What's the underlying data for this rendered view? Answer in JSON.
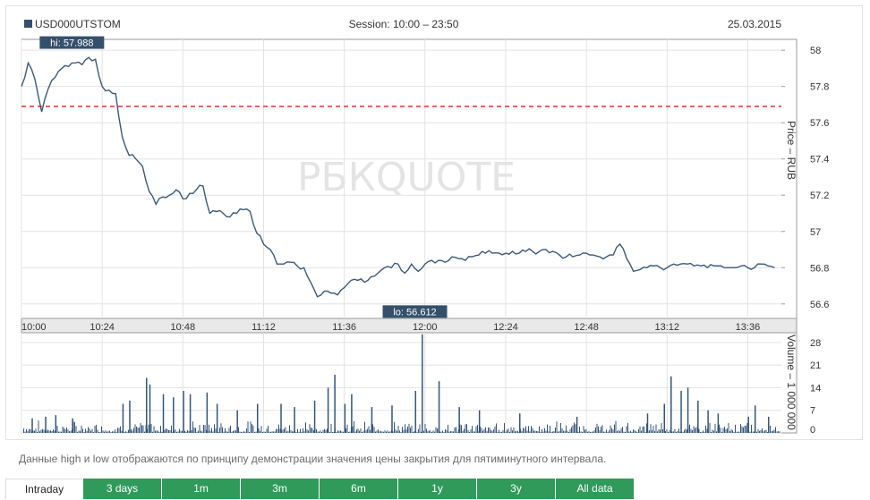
{
  "header": {
    "ticker": "USD000UTSTOM",
    "session": "Session: 10:00 – 23:50",
    "date": "25.03.2015"
  },
  "watermark": "РБКQUOTE",
  "note": "Данные high и low отображаются по принципу демонстрации значения цены закрытия для пятиминутного интервала.",
  "tabs": [
    "Intraday",
    "3 days",
    "1m",
    "3m",
    "6m",
    "1y",
    "3y",
    "All data"
  ],
  "active_tab": "Intraday",
  "colors": {
    "line": "#3a5a7a",
    "volume": "#33557a",
    "reference": "#e03030",
    "tab_bg": "#2f9a5a",
    "label_bg": "#34506b"
  },
  "chart_data": [
    {
      "type": "line",
      "ylabel": "Price – RUB",
      "x_ticks": [
        "10:00",
        "10:24",
        "10:48",
        "11:12",
        "11:36",
        "12:00",
        "12:24",
        "12:48",
        "13:12",
        "13:36"
      ],
      "y_ticks": [
        58,
        57.8,
        57.6,
        57.4,
        57.2,
        57,
        56.8,
        56.6
      ],
      "ylim": [
        56.52,
        58.06
      ],
      "hi_label": "hi: 57.988",
      "lo_label": "lo: 56.612",
      "hi": 57.988,
      "lo": 56.612,
      "reference_line": 57.69,
      "series": [
        {
          "x": [
            "10:00",
            "10:02",
            "10:04",
            "10:06",
            "10:08",
            "10:10",
            "10:12",
            "10:14",
            "10:16",
            "10:18",
            "10:20",
            "10:22",
            "10:24",
            "10:26",
            "10:28",
            "10:30",
            "10:32",
            "10:34",
            "10:36",
            "10:38",
            "10:40",
            "10:42",
            "10:44",
            "10:46",
            "10:48",
            "10:50",
            "10:52",
            "10:54",
            "10:56",
            "10:58",
            "11:00",
            "11:02",
            "11:04",
            "11:06",
            "11:08",
            "11:10",
            "11:12",
            "11:14",
            "11:16",
            "11:18",
            "11:20",
            "11:22",
            "11:24",
            "11:26",
            "11:28",
            "11:30",
            "11:32",
            "11:34",
            "11:36",
            "11:38",
            "11:40",
            "11:42",
            "11:44",
            "11:46",
            "11:48",
            "11:50",
            "11:52",
            "11:54",
            "11:56",
            "11:58",
            "12:00",
            "12:02",
            "12:04",
            "12:06",
            "12:08",
            "12:10",
            "12:12",
            "12:14",
            "12:16",
            "12:18",
            "12:20",
            "12:22",
            "12:24",
            "12:26",
            "12:28",
            "12:30",
            "12:32",
            "12:34",
            "12:36",
            "12:38",
            "12:40",
            "12:42",
            "12:44",
            "12:46",
            "12:48",
            "12:50",
            "12:52",
            "12:54",
            "12:56",
            "12:58",
            "13:00",
            "13:02",
            "13:04",
            "13:06",
            "13:08",
            "13:10",
            "13:12",
            "13:14",
            "13:16",
            "13:18",
            "13:20",
            "13:22",
            "13:24",
            "13:26",
            "13:28",
            "13:30",
            "13:32",
            "13:34",
            "13:36",
            "13:38",
            "13:40",
            "13:42",
            "13:44"
          ],
          "values": [
            57.8,
            57.93,
            57.84,
            57.66,
            57.79,
            57.85,
            57.9,
            57.91,
            57.93,
            57.92,
            57.96,
            57.95,
            57.8,
            57.78,
            57.76,
            57.52,
            57.42,
            57.4,
            57.36,
            57.22,
            57.15,
            57.19,
            57.2,
            57.23,
            57.18,
            57.21,
            57.23,
            57.25,
            57.1,
            57.11,
            57.1,
            57.08,
            57.1,
            57.12,
            57.11,
            56.99,
            56.93,
            56.9,
            56.82,
            56.82,
            56.83,
            56.81,
            56.8,
            56.72,
            56.64,
            56.67,
            56.66,
            56.65,
            56.69,
            56.73,
            56.73,
            56.72,
            56.75,
            56.77,
            56.8,
            56.8,
            56.82,
            56.77,
            56.82,
            56.78,
            56.82,
            56.84,
            56.84,
            56.83,
            56.86,
            56.85,
            56.84,
            56.86,
            56.87,
            56.88,
            56.88,
            56.88,
            56.88,
            56.89,
            56.88,
            56.89,
            56.89,
            56.89,
            56.9,
            56.89,
            56.87,
            56.86,
            56.86,
            56.87,
            56.88,
            56.87,
            56.86,
            56.86,
            56.87,
            56.93,
            56.85,
            56.78,
            56.79,
            56.8,
            56.81,
            56.8,
            56.8,
            56.82,
            56.82,
            56.82,
            56.81,
            56.81,
            56.8,
            56.81,
            56.81,
            56.8,
            56.8,
            56.81,
            56.8,
            56.8,
            56.82,
            56.81,
            56.8
          ]
        }
      ]
    },
    {
      "type": "bar",
      "ylabel": "Volume – 1 000 000",
      "y_ticks": [
        28,
        21,
        14,
        7,
        0
      ],
      "ylim": [
        0,
        31
      ],
      "spikes": [
        {
          "x": "10:03",
          "value": 4.5
        },
        {
          "x": "10:07",
          "value": 5
        },
        {
          "x": "10:10",
          "value": 5.5
        },
        {
          "x": "10:15",
          "value": 4.5
        },
        {
          "x": "10:30",
          "value": 9
        },
        {
          "x": "10:32",
          "value": 10
        },
        {
          "x": "10:37",
          "value": 17
        },
        {
          "x": "10:38",
          "value": 15
        },
        {
          "x": "10:42",
          "value": 12
        },
        {
          "x": "10:45",
          "value": 11
        },
        {
          "x": "10:48",
          "value": 13
        },
        {
          "x": "10:50",
          "value": 12
        },
        {
          "x": "10:55",
          "value": 12.5
        },
        {
          "x": "10:58",
          "value": 9
        },
        {
          "x": "11:04",
          "value": 7
        },
        {
          "x": "11:10",
          "value": 9
        },
        {
          "x": "11:17",
          "value": 9
        },
        {
          "x": "11:21",
          "value": 8
        },
        {
          "x": "11:27",
          "value": 10
        },
        {
          "x": "11:31",
          "value": 14
        },
        {
          "x": "11:33",
          "value": 18
        },
        {
          "x": "11:36",
          "value": 9
        },
        {
          "x": "11:38",
          "value": 12
        },
        {
          "x": "11:44",
          "value": 8
        },
        {
          "x": "11:50",
          "value": 8.5
        },
        {
          "x": "11:57",
          "value": 13
        },
        {
          "x": "11:59",
          "value": 30.5
        },
        {
          "x": "12:04",
          "value": 16
        },
        {
          "x": "12:10",
          "value": 8
        },
        {
          "x": "12:16",
          "value": 7
        },
        {
          "x": "12:28",
          "value": 6
        },
        {
          "x": "12:45",
          "value": 5
        },
        {
          "x": "13:06",
          "value": 6
        },
        {
          "x": "13:11",
          "value": 9
        },
        {
          "x": "13:13",
          "value": 17.5
        },
        {
          "x": "13:16",
          "value": 13
        },
        {
          "x": "13:18",
          "value": 14
        },
        {
          "x": "13:21",
          "value": 10
        },
        {
          "x": "13:24",
          "value": 7
        },
        {
          "x": "13:27",
          "value": 6
        },
        {
          "x": "13:36",
          "value": 5
        },
        {
          "x": "13:38",
          "value": 8.5
        },
        {
          "x": "13:42",
          "value": 5
        }
      ]
    }
  ]
}
